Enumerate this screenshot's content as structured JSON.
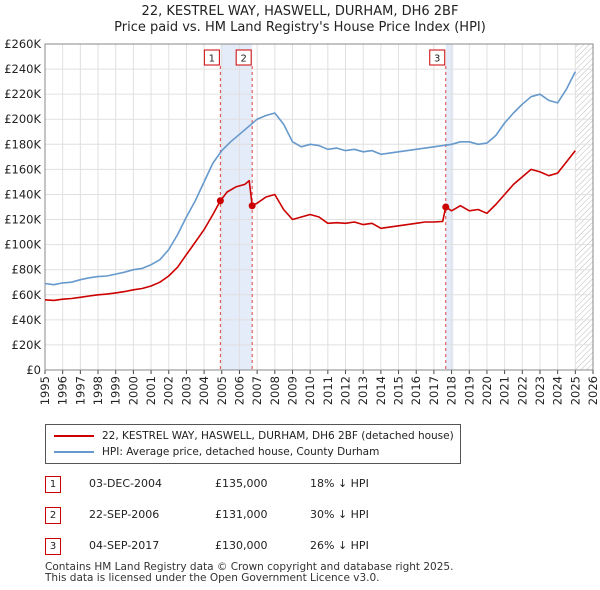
{
  "title": {
    "line1": "22, KESTREL WAY, HASWELL, DURHAM, DH6 2BF",
    "line2": "Price paid vs. HM Land Registry's House Price Index (HPI)"
  },
  "chart_data": {
    "type": "line",
    "title": "22, KESTREL WAY, HASWELL, DURHAM, DH6 2BF — Price paid vs. HM Land Registry's House Price Index (HPI)",
    "xlabel": "",
    "ylabel": "",
    "xlim": [
      1995,
      2026
    ],
    "ylim": [
      0,
      260000
    ],
    "y_ticks": [
      {
        "value": 0,
        "label": "£0"
      },
      {
        "value": 20000,
        "label": "£20K"
      },
      {
        "value": 40000,
        "label": "£40K"
      },
      {
        "value": 60000,
        "label": "£60K"
      },
      {
        "value": 80000,
        "label": "£80K"
      },
      {
        "value": 100000,
        "label": "£100K"
      },
      {
        "value": 120000,
        "label": "£120K"
      },
      {
        "value": 140000,
        "label": "£140K"
      },
      {
        "value": 160000,
        "label": "£160K"
      },
      {
        "value": 180000,
        "label": "£180K"
      },
      {
        "value": 200000,
        "label": "£200K"
      },
      {
        "value": 220000,
        "label": "£220K"
      },
      {
        "value": 240000,
        "label": "£240K"
      },
      {
        "value": 260000,
        "label": "£260K"
      }
    ],
    "x_ticks": [
      1995,
      1996,
      1997,
      1998,
      1999,
      2000,
      2001,
      2002,
      2003,
      2004,
      2005,
      2006,
      2007,
      2008,
      2009,
      2010,
      2011,
      2012,
      2013,
      2014,
      2015,
      2016,
      2017,
      2018,
      2019,
      2020,
      2021,
      2022,
      2023,
      2024,
      2025,
      2026
    ],
    "grid": true,
    "shaded_ranges": [
      [
        2004.92,
        2006.72
      ],
      [
        2017.67,
        2018.1
      ]
    ],
    "future_hatch_from": 2025.0,
    "series": [
      {
        "name": "HPI: Average price, detached house, County Durham",
        "color": "#6699cc",
        "x": [
          1995,
          1995.5,
          1996,
          1996.5,
          1997,
          1997.5,
          1998,
          1998.5,
          1999,
          1999.5,
          2000,
          2000.5,
          2001,
          2001.5,
          2002,
          2002.5,
          2003,
          2003.5,
          2004,
          2004.5,
          2005,
          2005.5,
          2006,
          2006.5,
          2007,
          2007.5,
          2008,
          2008.5,
          2009,
          2009.5,
          2010,
          2010.5,
          2011,
          2011.5,
          2012,
          2012.5,
          2013,
          2013.5,
          2014,
          2014.5,
          2015,
          2015.5,
          2016,
          2016.5,
          2017,
          2017.5,
          2018,
          2018.5,
          2019,
          2019.5,
          2020,
          2020.5,
          2021,
          2021.5,
          2022,
          2022.5,
          2023,
          2023.5,
          2024,
          2024.5,
          2025
        ],
        "values": [
          69000,
          68000,
          69500,
          70000,
          72000,
          73500,
          74500,
          75000,
          76500,
          78000,
          80000,
          81000,
          84000,
          88000,
          96000,
          108000,
          122000,
          135000,
          150000,
          165000,
          175000,
          182000,
          188000,
          194000,
          200000,
          203000,
          205000,
          196000,
          182000,
          178000,
          180000,
          179000,
          176000,
          177000,
          175000,
          176000,
          174000,
          175000,
          172000,
          173000,
          174000,
          175000,
          176000,
          177000,
          178000,
          179000,
          180000,
          182000,
          182000,
          180000,
          181000,
          187000,
          197000,
          205000,
          212000,
          218000,
          220000,
          215000,
          213000,
          224000,
          238000
        ]
      },
      {
        "name": "22, KESTREL WAY, HASWELL, DURHAM, DH6 2BF (detached house)",
        "color": "#cc0000",
        "x": [
          1995,
          1995.5,
          1996,
          1996.5,
          1997,
          1997.5,
          1998,
          1998.5,
          1999,
          1999.5,
          2000,
          2000.5,
          2001,
          2001.5,
          2002,
          2002.5,
          2003,
          2003.5,
          2004,
          2004.5,
          2004.92,
          2005.3,
          2005.8,
          2006.3,
          2006.55,
          2006.72,
          2007,
          2007.5,
          2008,
          2008.5,
          2009,
          2009.5,
          2010,
          2010.5,
          2011,
          2011.5,
          2012,
          2012.5,
          2013,
          2013.5,
          2014,
          2014.5,
          2015,
          2015.5,
          2016,
          2016.5,
          2017,
          2017.5,
          2017.67,
          2018,
          2018.5,
          2019,
          2019.5,
          2020,
          2020.5,
          2021,
          2021.5,
          2022,
          2022.5,
          2023,
          2023.5,
          2024,
          2024.5,
          2025
        ],
        "values": [
          56000,
          55500,
          56500,
          57000,
          58000,
          59000,
          60000,
          60500,
          61500,
          62500,
          64000,
          65000,
          67000,
          70000,
          75000,
          82000,
          92000,
          102000,
          112000,
          124000,
          135000,
          142000,
          146000,
          148000,
          151000,
          131000,
          133000,
          138000,
          140000,
          128000,
          120000,
          122000,
          124000,
          122000,
          117000,
          117500,
          117000,
          118000,
          116000,
          117000,
          113000,
          114000,
          115000,
          116000,
          117000,
          118000,
          118000,
          118500,
          130000,
          127000,
          131000,
          127000,
          128000,
          125000,
          132000,
          140000,
          148000,
          154000,
          160000,
          158000,
          155000,
          157000,
          166000,
          175000
        ]
      }
    ],
    "transactions": [
      {
        "id": "1",
        "x": 2004.92,
        "price": 135000,
        "date": "03-DEC-2004",
        "price_label": "£135,000",
        "hpi_label": "18% ↓ HPI"
      },
      {
        "id": "2",
        "x": 2006.72,
        "price": 131000,
        "date": "22-SEP-2006",
        "price_label": "£131,000",
        "hpi_label": "30% ↓ HPI"
      },
      {
        "id": "3",
        "x": 2017.67,
        "price": 130000,
        "date": "04-SEP-2017",
        "price_label": "£130,000",
        "hpi_label": "26% ↓ HPI"
      }
    ]
  },
  "legend": {
    "property_label": "22, KESTREL WAY, HASWELL, DURHAM, DH6 2BF (detached house)",
    "hpi_label": "HPI: Average price, detached house, County Durham",
    "property_color": "#cc0000",
    "hpi_color": "#6699cc"
  },
  "transactions_table": [
    {
      "num": "1",
      "date": "03-DEC-2004",
      "price": "£135,000",
      "hpi": "18% ↓ HPI"
    },
    {
      "num": "2",
      "date": "22-SEP-2006",
      "price": "£131,000",
      "hpi": "30% ↓ HPI"
    },
    {
      "num": "3",
      "date": "04-SEP-2017",
      "price": "£130,000",
      "hpi": "26% ↓ HPI"
    }
  ],
  "footer": {
    "line1": "Contains HM Land Registry data © Crown copyright and database right 2025.",
    "line2": "This data is licensed under the Open Government Licence v3.0."
  }
}
